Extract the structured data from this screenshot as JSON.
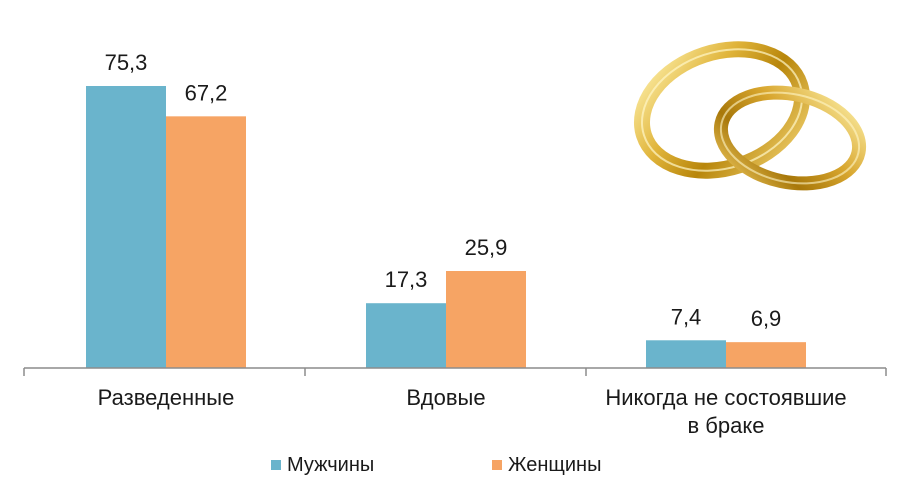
{
  "chart_data": {
    "type": "bar",
    "categories": [
      "Разведенные",
      "Вдовые",
      "Никогда не состоявшие в браке"
    ],
    "category_label_lines": [
      [
        "Разведенные"
      ],
      [
        "Вдовые"
      ],
      [
        "Никогда не состоявшие",
        "в браке"
      ]
    ],
    "series": [
      {
        "name": "Мужчины",
        "color": "#6AB4CC",
        "values": [
          75.3,
          17.3,
          7.4
        ],
        "value_labels": [
          "75,3",
          "17,3",
          "7,4"
        ]
      },
      {
        "name": "Женщины",
        "color": "#F6A464",
        "values": [
          67.2,
          25.9,
          6.9
        ],
        "value_labels": [
          "67,2",
          "25,9",
          "6,9"
        ]
      }
    ],
    "title": "",
    "xlabel": "",
    "ylabel": "",
    "ylim": [
      0,
      80
    ],
    "grid": false,
    "legend_position": "bottom-center",
    "decoration_icon": "wedding-rings-icon"
  }
}
